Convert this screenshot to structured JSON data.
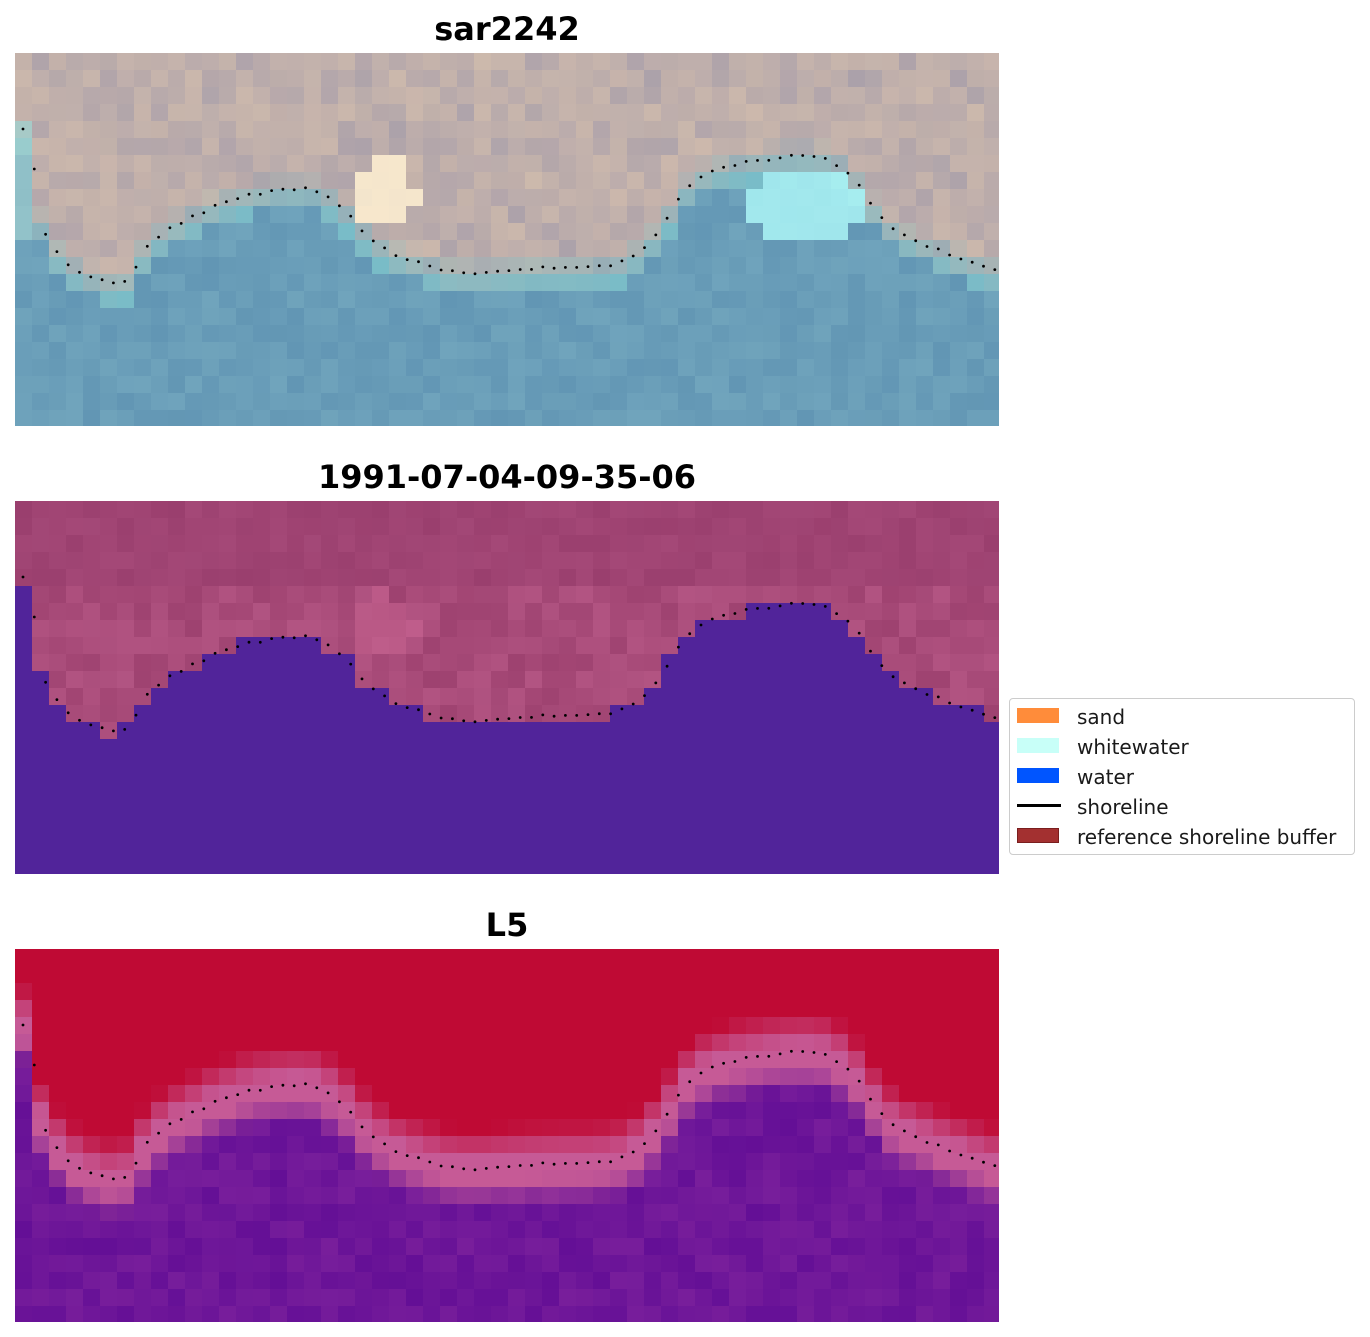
{
  "panels": [
    {
      "title": "sar2242",
      "kind": "rgb"
    },
    {
      "title": "1991-07-04-09-35-06",
      "kind": "classified"
    },
    {
      "title": "L5",
      "kind": "probability"
    }
  ],
  "legend": {
    "items": [
      {
        "label": "sand",
        "type": "patch",
        "color": "#ff8c3a"
      },
      {
        "label": "whitewater",
        "type": "patch",
        "color": "#c8fff8"
      },
      {
        "label": "water",
        "type": "patch",
        "color": "#0055ff"
      },
      {
        "label": "shoreline",
        "type": "line",
        "color": "#000000"
      },
      {
        "label": "reference shoreline buffer",
        "type": "patch",
        "color": "#a33030",
        "edge": "#7a1e1e"
      }
    ]
  },
  "colors": {
    "water_class": "#51249a",
    "buffer_overlay": "#a33a6d",
    "probability_land": "#bf0a34",
    "probability_water": "#6f1e98",
    "shoreline_dots": "#000000"
  }
}
